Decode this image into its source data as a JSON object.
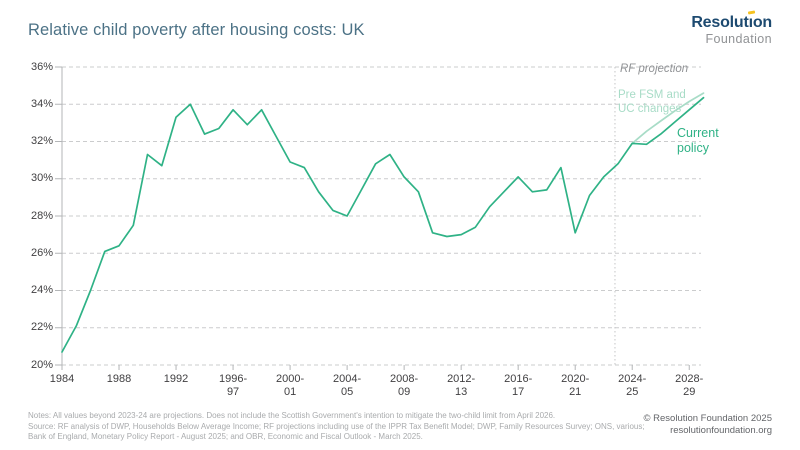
{
  "header": {
    "title": "Relative child poverty after housing costs: UK",
    "logo": {
      "line1_pre": "Resolut",
      "line1_i": "ı",
      "line1_post": "on",
      "line2": "Foundation",
      "navy": "#1d4a70",
      "gray": "#909295",
      "yellow": "#f6c321"
    }
  },
  "chart_data": {
    "type": "line",
    "title": "Relative child poverty after housing costs: UK",
    "xlabel": "",
    "ylabel": "",
    "x_range": [
      1984,
      2029
    ],
    "ylim": [
      20,
      36
    ],
    "grid": "horizontal-dashed",
    "legend_position": "none",
    "y_axis": {
      "ticks": [
        {
          "v": 36,
          "label": "36%"
        },
        {
          "v": 34,
          "label": "34%"
        },
        {
          "v": 32,
          "label": "32%"
        },
        {
          "v": 30,
          "label": "30%"
        },
        {
          "v": 28,
          "label": "28%"
        },
        {
          "v": 26,
          "label": "26%"
        },
        {
          "v": 24,
          "label": "24%"
        },
        {
          "v": 22,
          "label": "22%"
        },
        {
          "v": 20,
          "label": "20%"
        }
      ]
    },
    "x_axis": {
      "ticks": [
        {
          "v": 1984,
          "label": "1984"
        },
        {
          "v": 1988,
          "label": "1988"
        },
        {
          "v": 1992,
          "label": "1992"
        },
        {
          "v": 1996,
          "label": "1996-\n97"
        },
        {
          "v": 2000,
          "label": "2000-\n01"
        },
        {
          "v": 2004,
          "label": "2004-\n05"
        },
        {
          "v": 2008,
          "label": "2008-\n09"
        },
        {
          "v": 2012,
          "label": "2012-\n13"
        },
        {
          "v": 2016,
          "label": "2016-\n17"
        },
        {
          "v": 2020,
          "label": "2020-\n21"
        },
        {
          "v": 2024,
          "label": "2024-\n25"
        },
        {
          "v": 2028,
          "label": "2028-\n29"
        }
      ]
    },
    "projection_divider_year": 2023,
    "series": [
      {
        "name": "Current policy",
        "color": "#2fb286",
        "points": [
          [
            1984,
            20.7
          ],
          [
            1985,
            22.1
          ],
          [
            1986,
            24.0
          ],
          [
            1987,
            26.1
          ],
          [
            1988,
            26.4
          ],
          [
            1989,
            27.5
          ],
          [
            1990,
            31.3
          ],
          [
            1991,
            30.7
          ],
          [
            1992,
            33.3
          ],
          [
            1993,
            34.0
          ],
          [
            1994,
            32.4
          ],
          [
            1995,
            32.7
          ],
          [
            1996,
            33.7
          ],
          [
            1997,
            32.9
          ],
          [
            1998,
            33.7
          ],
          [
            1999,
            32.3
          ],
          [
            2000,
            30.9
          ],
          [
            2001,
            30.6
          ],
          [
            2002,
            29.3
          ],
          [
            2003,
            28.3
          ],
          [
            2004,
            28.0
          ],
          [
            2005,
            29.4
          ],
          [
            2006,
            30.8
          ],
          [
            2007,
            31.3
          ],
          [
            2008,
            30.1
          ],
          [
            2009,
            29.3
          ],
          [
            2010,
            27.1
          ],
          [
            2011,
            26.9
          ],
          [
            2012,
            27.0
          ],
          [
            2013,
            27.4
          ],
          [
            2014,
            28.5
          ],
          [
            2015,
            29.3
          ],
          [
            2016,
            30.1
          ],
          [
            2017,
            29.3
          ],
          [
            2018,
            29.4
          ],
          [
            2019,
            30.6
          ],
          [
            2020,
            27.1
          ],
          [
            2021,
            29.1
          ],
          [
            2022,
            30.1
          ],
          [
            2023,
            30.8
          ],
          [
            2024,
            31.9
          ],
          [
            2025,
            31.85
          ],
          [
            2026,
            32.4
          ],
          [
            2027,
            33.05
          ],
          [
            2028,
            33.7
          ],
          [
            2029,
            34.35
          ]
        ]
      },
      {
        "name": "Pre FSM and UC changes",
        "color": "#a8dcc7",
        "points": [
          [
            2024,
            31.9
          ],
          [
            2025,
            32.55
          ],
          [
            2026,
            33.1
          ],
          [
            2027,
            33.65
          ],
          [
            2028,
            34.15
          ],
          [
            2029,
            34.6
          ]
        ]
      }
    ],
    "annotations": {
      "projection": "RF projection",
      "pre_fsm": "Pre FSM and\nUC changes",
      "current_policy": "Current\npolicy"
    }
  },
  "notes": {
    "line1": "Notes: All values beyond 2023-24 are projections. Does not include the Scottish Government's intention to mitigate the two-child limit from April 2026.",
    "line2": "Source: RF analysis of DWP, Households Below Average Income; RF projections including use of the IPPR Tax Benefit Model; DWP, Family Resources Survey; ONS, various;",
    "line3": "Bank of England, Monetary Policy Report - August 2025; and OBR, Economic and Fiscal Outlook - March 2025."
  },
  "footer": {
    "copyright": "© Resolution Foundation 2025",
    "website": "resolutionfoundation.org"
  }
}
